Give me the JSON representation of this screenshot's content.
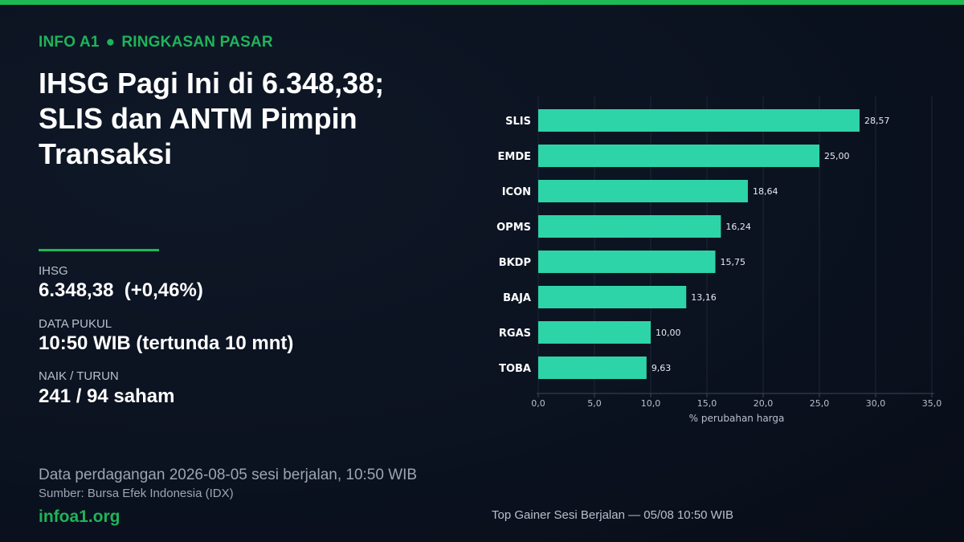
{
  "header": {
    "source_tag": "INFO A1",
    "section": "RINGKASAN PASAR",
    "headline": "IHSG Pagi Ini di 6.348,38; SLIS dan ANTM Pimpin Transaksi"
  },
  "stats": [
    {
      "label": "IHSG",
      "value": "6.348,38  (+0,46%)"
    },
    {
      "label": "DATA PUKUL",
      "value": "10:50 WIB (tertunda 10 mnt)"
    },
    {
      "label": "NAIK / TURUN",
      "value": "241 / 94 saham"
    }
  ],
  "footer": {
    "note": "Data perdagangan 2026-08-05 sesi berjalan, 10:50 WIB",
    "source": "Sumber: Bursa Efek Indonesia (IDX)",
    "brand": "infoa1.org",
    "chart_caption": "Top Gainer Sesi Berjalan — 05/08 10:50 WIB"
  },
  "colors": {
    "accent": "#1db954",
    "bar": "#2dd4a8",
    "background": "#0b1220"
  },
  "chart_data": {
    "type": "bar",
    "orientation": "horizontal",
    "categories": [
      "SLIS",
      "EMDE",
      "ICON",
      "OPMS",
      "BKDP",
      "BAJA",
      "RGAS",
      "TOBA"
    ],
    "values": [
      28.57,
      25.0,
      18.64,
      16.24,
      15.75,
      13.16,
      10.0,
      9.63
    ],
    "value_labels": [
      "28,57",
      "25,00",
      "18,64",
      "16,24",
      "15,75",
      "13,16",
      "10,00",
      "9,63"
    ],
    "xlim": [
      0,
      35
    ],
    "x_ticks": [
      0,
      5,
      10,
      15,
      20,
      25,
      30,
      35
    ],
    "x_tick_labels": [
      "0,0",
      "5,0",
      "10,0",
      "15,0",
      "20,0",
      "25,0",
      "30,0",
      "35,0"
    ],
    "xlabel": "% perubahan harga",
    "grid": true
  }
}
